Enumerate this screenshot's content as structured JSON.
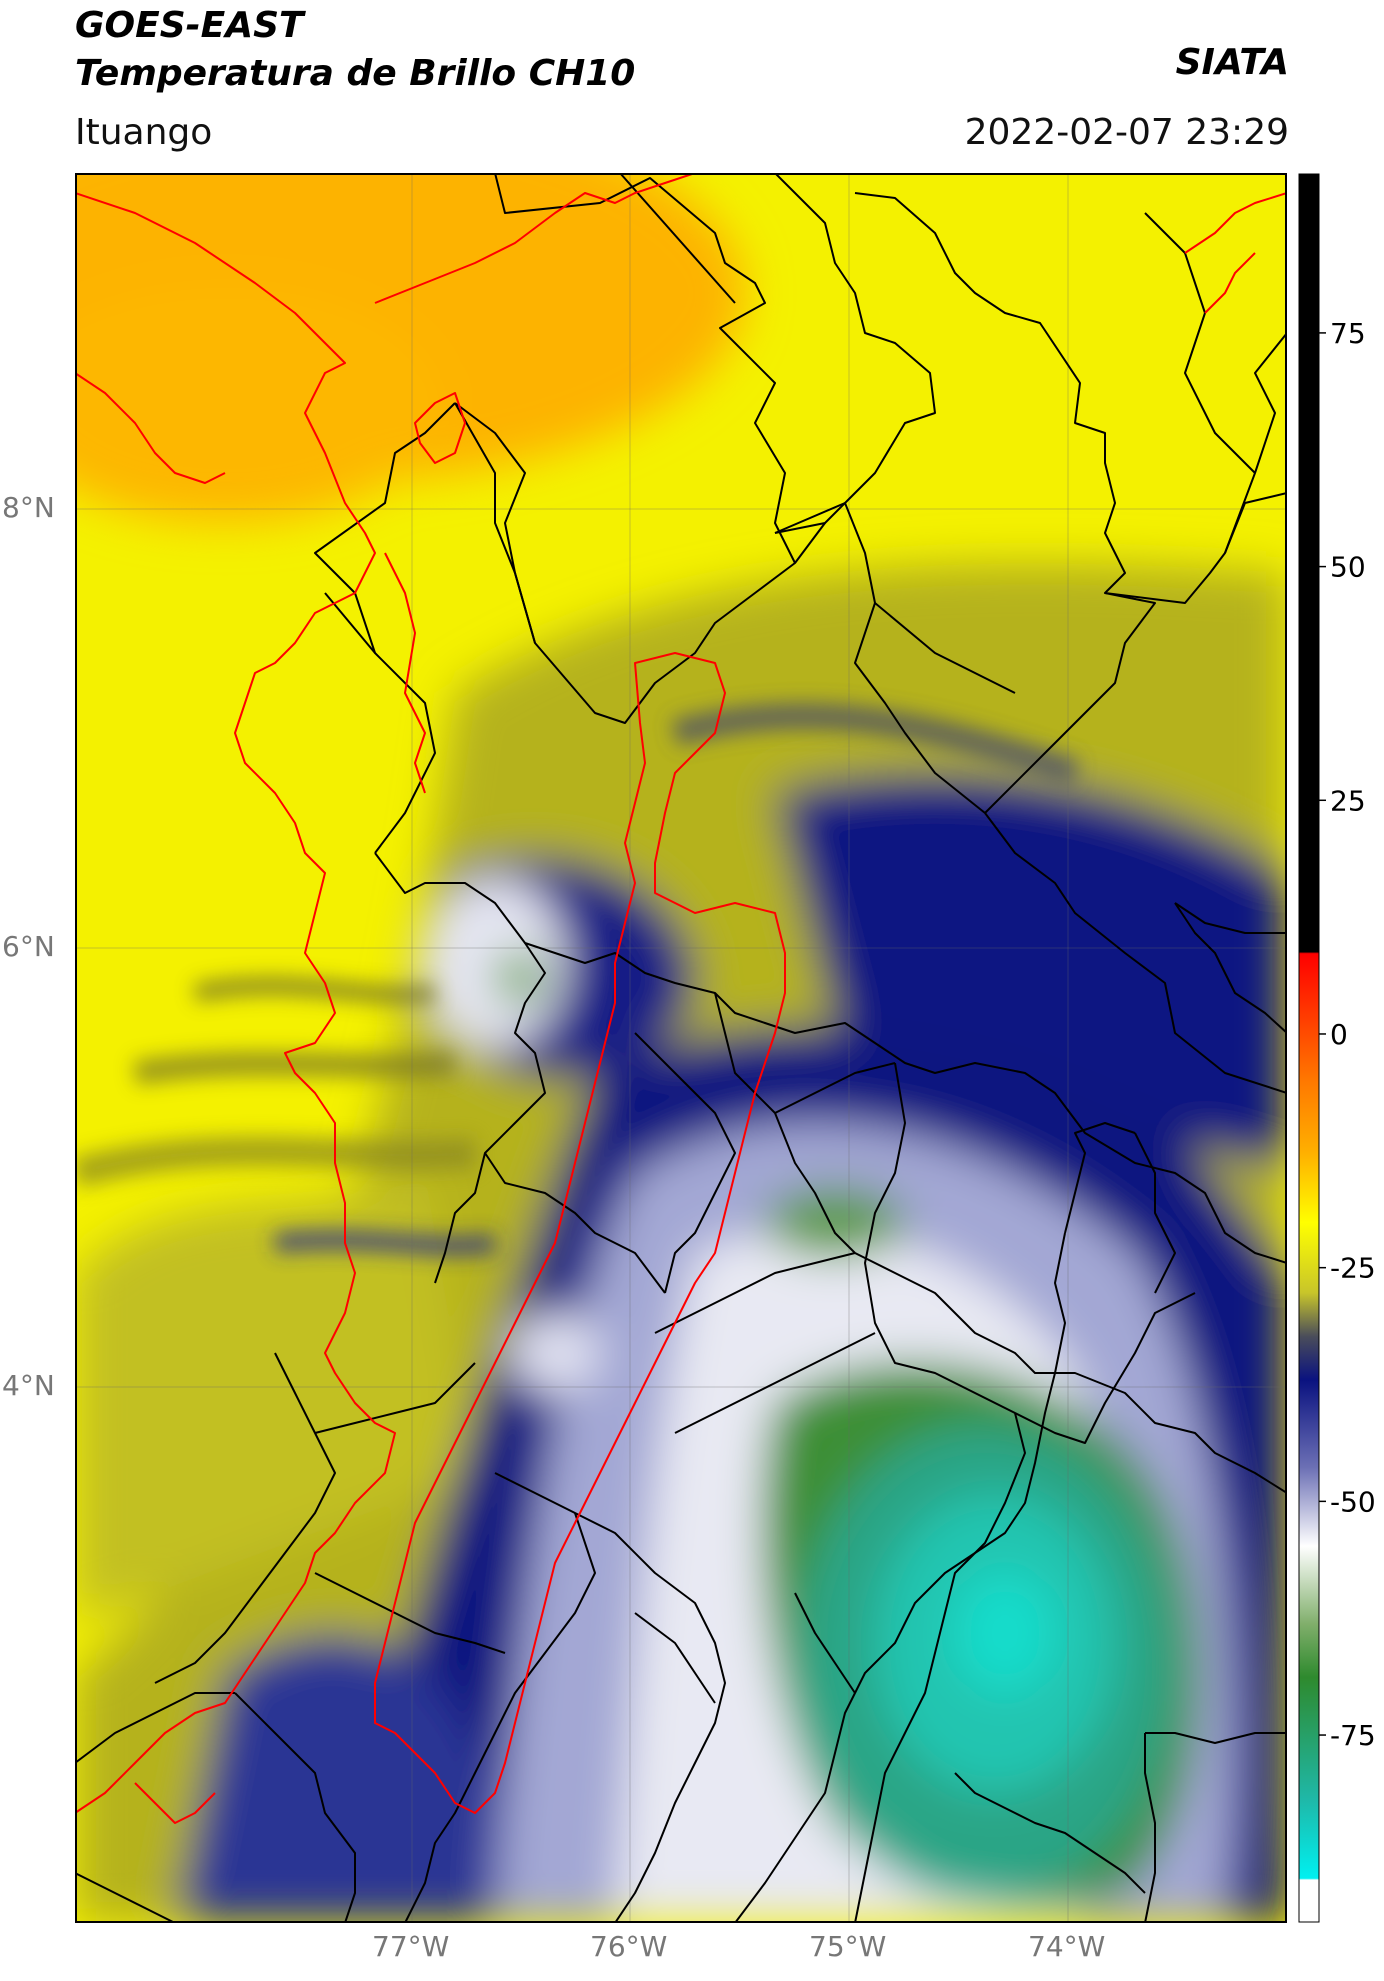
{
  "header": {
    "title_line1": "GOES-EAST",
    "title_line2": "Temperatura de Brillo CH10",
    "organization": "SIATA",
    "region": "Ituango",
    "timestamp": "2022-02-07 23:29"
  },
  "map": {
    "lon_range": [
      -78.55,
      -73.0
    ],
    "lat_range": [
      1.8,
      9.55
    ],
    "lat_labels": [
      {
        "lat": 8,
        "text": "8°N"
      },
      {
        "lat": 6,
        "text": "6°N"
      },
      {
        "lat": 4,
        "text": "4°N"
      }
    ],
    "lon_labels": [
      {
        "lon": -77,
        "text": "77°W"
      },
      {
        "lon": -76,
        "text": "76°W"
      },
      {
        "lon": -75,
        "text": "75°W"
      },
      {
        "lon": -74,
        "text": "74°W"
      }
    ]
  },
  "colorbar": {
    "range": [
      -95,
      92
    ],
    "ticks": [
      {
        "value": 75,
        "text": "75"
      },
      {
        "value": 50,
        "text": "50"
      },
      {
        "value": 25,
        "text": "25"
      },
      {
        "value": 0,
        "text": "0"
      },
      {
        "value": -25,
        "text": "-25"
      },
      {
        "value": -50,
        "text": "-50"
      },
      {
        "value": -75,
        "text": "-75"
      }
    ],
    "colors": {
      "black": "#000000",
      "red": "#ff0000",
      "orange": "#ffa500",
      "yellow": "#ffff00",
      "olive": "#b7b61c",
      "navy": "#0a1280",
      "white": "#ffffff",
      "green": "#3a8a2a",
      "teal": "#1ec8b4",
      "cyan": "#00e5e5"
    }
  }
}
